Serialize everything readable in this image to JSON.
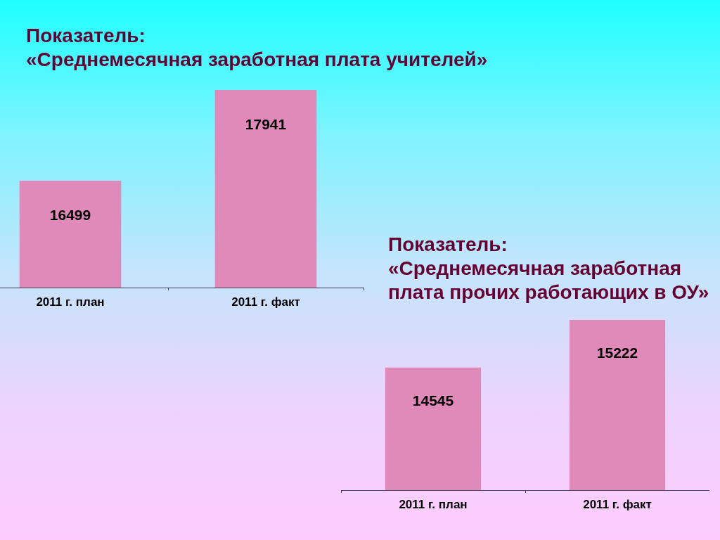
{
  "chart_data": [
    {
      "type": "bar",
      "title": "Показатель:\n«Среднемесячная заработная плата учителей»",
      "categories": [
        "2011 г. план",
        "2011 г. факт"
      ],
      "values": [
        16499,
        17941
      ],
      "color": "#e08ab9",
      "ylim": [
        14800,
        17941
      ],
      "data_labels": true
    },
    {
      "type": "bar",
      "title": "Показатель:\n«Среднемесячная заработная\nплата прочих работающих в ОУ»",
      "categories": [
        "2011 г. план",
        "2011 г. факт"
      ],
      "values": [
        14545,
        15222
      ],
      "color": "#e08ab9",
      "ylim": [
        12800,
        15222
      ],
      "data_labels": true
    }
  ]
}
